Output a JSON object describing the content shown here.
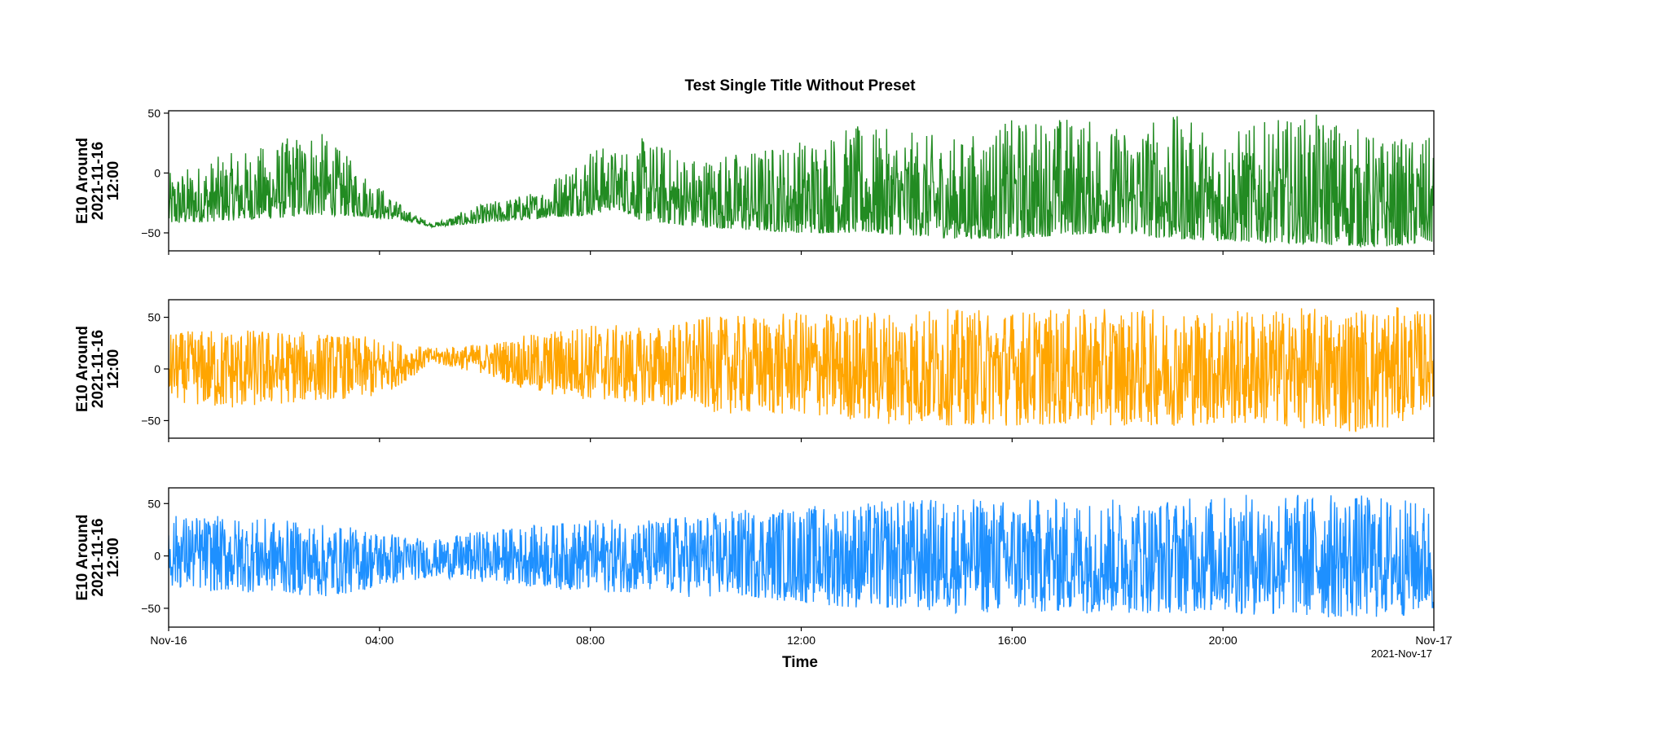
{
  "chart_data": {
    "type": "line",
    "title": "Test Single Title Without Preset",
    "xlabel": "Time",
    "x_range": [
      "2021-11-16 00:00",
      "2021-11-17 00:00"
    ],
    "x_tick_labels": [
      "Nov-16",
      "04:00",
      "08:00",
      "12:00",
      "16:00",
      "20:00",
      "Nov-17"
    ],
    "x_offset_label": "2021-Nov-17",
    "grid": false,
    "legend": "none",
    "panels": [
      {
        "ylabel": [
          "E10 Around",
          "2021-11-16",
          "12:00"
        ],
        "color": "#228b22",
        "ylim": [
          -65,
          52
        ],
        "yticks": [
          50,
          0,
          -50
        ],
        "ytick_labels": [
          "50",
          "0",
          "−50"
        ],
        "envelope": {
          "times": [
            "00:00",
            "01:00",
            "02:00",
            "02:45",
            "03:30",
            "04:30",
            "05:00",
            "06:00",
            "07:00",
            "08:00",
            "08:30",
            "09:00",
            "10:00",
            "11:00",
            "12:00",
            "13:00",
            "14:00",
            "15:00",
            "16:00",
            "17:00",
            "18:00",
            "19:00",
            "20:00",
            "21:00",
            "22:00",
            "23:00",
            "24:00"
          ],
          "low": [
            -43,
            -40,
            -38,
            -35,
            -36,
            -40,
            -45,
            -42,
            -38,
            -35,
            -30,
            -40,
            -45,
            -48,
            -50,
            -50,
            -52,
            -55,
            -55,
            -52,
            -50,
            -55,
            -57,
            -58,
            -60,
            -62,
            -58
          ],
          "high": [
            0,
            15,
            25,
            40,
            10,
            -30,
            -42,
            -25,
            -15,
            25,
            20,
            30,
            15,
            20,
            30,
            40,
            35,
            30,
            45,
            50,
            40,
            50,
            35,
            45,
            50,
            30,
            30
          ]
        }
      },
      {
        "ylabel": [
          "E10 Around",
          "2021-11-16",
          "12:00"
        ],
        "color": "#ffa500",
        "ylim": [
          -67,
          67
        ],
        "yticks": [
          50,
          0,
          -50
        ],
        "ytick_labels": [
          "50",
          "0",
          "−50"
        ],
        "envelope": {
          "times": [
            "00:00",
            "01:00",
            "02:00",
            "03:00",
            "04:00",
            "05:00",
            "06:00",
            "07:00",
            "08:00",
            "09:00",
            "10:00",
            "11:00",
            "12:00",
            "13:00",
            "14:00",
            "15:00",
            "16:00",
            "17:00",
            "18:00",
            "19:00",
            "20:00",
            "21:00",
            "22:00",
            "23:00",
            "24:00"
          ],
          "low": [
            -30,
            -40,
            -35,
            -30,
            -28,
            5,
            -5,
            -25,
            -30,
            -35,
            -40,
            -45,
            -45,
            -50,
            -55,
            -55,
            -55,
            -55,
            -55,
            -55,
            -55,
            -55,
            -60,
            -62,
            -35
          ],
          "high": [
            35,
            40,
            38,
            35,
            30,
            20,
            25,
            35,
            45,
            40,
            50,
            52,
            55,
            55,
            60,
            58,
            58,
            58,
            58,
            58,
            58,
            58,
            60,
            62,
            55
          ]
        }
      },
      {
        "ylabel": [
          "E10 Around",
          "2021-11-16",
          "12:00"
        ],
        "color": "#1e90ff",
        "ylim": [
          -68,
          65
        ],
        "yticks": [
          50,
          0,
          -50
        ],
        "ytick_labels": [
          "50",
          "0",
          "−50"
        ],
        "envelope": {
          "times": [
            "00:00",
            "01:00",
            "02:00",
            "03:00",
            "04:00",
            "05:00",
            "06:00",
            "07:00",
            "08:00",
            "09:00",
            "10:00",
            "11:00",
            "12:00",
            "13:00",
            "14:00",
            "15:00",
            "16:00",
            "17:00",
            "18:00",
            "19:00",
            "20:00",
            "21:00",
            "22:00",
            "23:00",
            "24:00"
          ],
          "low": [
            -30,
            -35,
            -35,
            -40,
            -30,
            -20,
            -25,
            -30,
            -35,
            -35,
            -40,
            -40,
            -45,
            -50,
            -52,
            -55,
            -55,
            -55,
            -55,
            -55,
            -55,
            -58,
            -60,
            -60,
            -55
          ],
          "high": [
            40,
            38,
            35,
            30,
            25,
            15,
            25,
            30,
            35,
            35,
            40,
            45,
            48,
            50,
            55,
            55,
            55,
            55,
            55,
            55,
            58,
            60,
            60,
            58,
            50
          ]
        }
      }
    ]
  }
}
